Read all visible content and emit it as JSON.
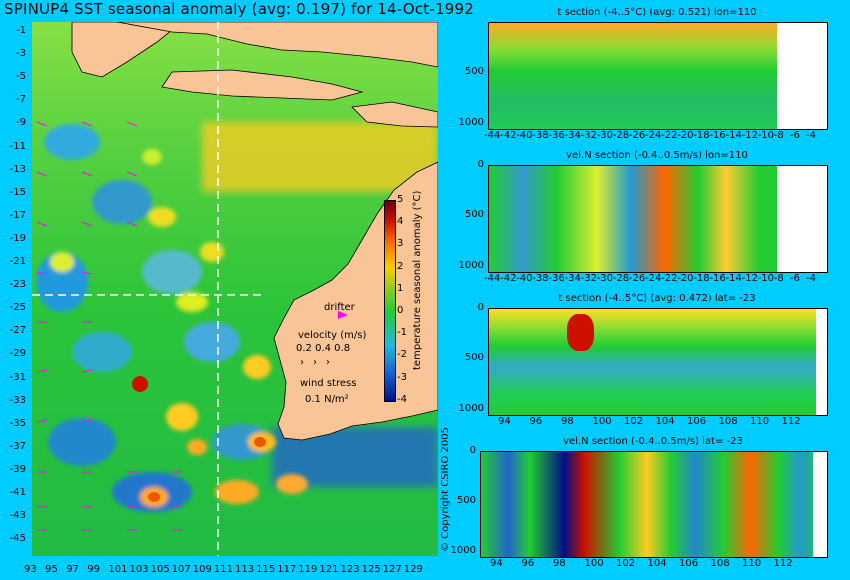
{
  "title": "SPINUP4 SST seasonal anomaly (avg: 0.197) for 14-Oct-1992",
  "map": {
    "lat_ticks": [
      "-1",
      "-3",
      "-5",
      "-7",
      "-9",
      "-11",
      "-13",
      "-15",
      "-17",
      "-19",
      "-21",
      "-23",
      "-25",
      "-27",
      "-29",
      "-31",
      "-33",
      "-35",
      "-37",
      "-39",
      "-41",
      "-43",
      "-45"
    ],
    "lon_ticks": [
      "93",
      "95",
      "97",
      "99",
      "101",
      "103",
      "105",
      "107",
      "109",
      "111",
      "113",
      "115",
      "117",
      "119",
      "121",
      "123",
      "125",
      "127",
      "129"
    ],
    "colorbar": {
      "label": "temperature seasonal anomaly (°C)",
      "ticks": [
        "5",
        "4",
        "3",
        "2",
        "1",
        "0",
        "-1",
        "-2",
        "-3",
        "-4"
      ],
      "range": [
        -4,
        5
      ]
    },
    "annotations": {
      "drifter": "drifter",
      "velocity_label": "velocity (m/s)",
      "velocity_scale": "0.2 0.4 0.8",
      "wind_label": "wind stress",
      "wind_scale": "0.1 N/m²"
    },
    "section_lines": {
      "lon": 110,
      "lat": -23
    },
    "colors": {
      "land": "#f9c496",
      "ocean_base": "#22cc33",
      "warm": "#ff9900",
      "hot": "#cc1100",
      "cool": "#2299dd",
      "cold": "#1122aa",
      "vectors": "#ff00ff"
    }
  },
  "panels": [
    {
      "title": "t section (-4..5°C) (avg: 0.521) lon=110",
      "y_ticks": [
        "500",
        "1000"
      ],
      "x_ticks": [
        "-44",
        "-42",
        "-40",
        "-38",
        "-36",
        "-34",
        "-32",
        "-30",
        "-28",
        "-26",
        "-24",
        "-22",
        "-20",
        "-18",
        "-16",
        "-14",
        "-12",
        "-10",
        "-8",
        "-6",
        "-4"
      ]
    },
    {
      "title": "vel.N section (-0.4..0.5m/s) lon=110",
      "y_ticks": [
        "0",
        "500",
        "1000"
      ],
      "x_ticks": [
        "-44",
        "-42",
        "-40",
        "-38",
        "-36",
        "-34",
        "-32",
        "-30",
        "-28",
        "-26",
        "-24",
        "-22",
        "-20",
        "-18",
        "-16",
        "-14",
        "-12",
        "-10",
        "-8",
        "-6",
        "-4"
      ]
    },
    {
      "title": "t section (-4..5°C) (avg: 0.472) lat= -23",
      "y_ticks": [
        "0",
        "500",
        "1000"
      ],
      "x_ticks": [
        "94",
        "96",
        "98",
        "100",
        "102",
        "104",
        "106",
        "108",
        "110",
        "112"
      ]
    },
    {
      "title": "vel.N section (-0.4..0.5m/s) lat= -23",
      "y_ticks": [
        "0",
        "500",
        "1000"
      ],
      "x_ticks": [
        "94",
        "96",
        "98",
        "100",
        "102",
        "104",
        "106",
        "108",
        "110",
        "112"
      ]
    }
  ],
  "copyright": "© Copyright CSIRO 2005",
  "chart_data": [
    {
      "type": "heatmap",
      "title": "SPINUP4 SST seasonal anomaly (avg: 0.197) for 14-Oct-1992",
      "xlabel": "",
      "ylabel": "",
      "xlim": [
        93,
        130
      ],
      "ylim": [
        -45,
        0
      ],
      "colorbar_label": "temperature seasonal anomaly (°C)",
      "colorbar_range": [
        -4,
        5
      ]
    },
    {
      "type": "heatmap",
      "title": "t section (-4..5°C) (avg: 0.521) lon=110",
      "xlim": [
        -45,
        -3
      ],
      "ylim": [
        1050,
        0
      ]
    },
    {
      "type": "heatmap",
      "title": "vel.N section (-0.4..0.5m/s) lon=110",
      "xlim": [
        -45,
        -3
      ],
      "ylim": [
        1050,
        0
      ]
    },
    {
      "type": "heatmap",
      "title": "t section (-4..5°C) (avg: 0.472) lat= -23",
      "xlim": [
        93,
        114
      ],
      "ylim": [
        1050,
        0
      ]
    },
    {
      "type": "heatmap",
      "title": "vel.N section (-0.4..0.5m/s) lat= -23",
      "xlim": [
        93,
        114
      ],
      "ylim": [
        1050,
        0
      ]
    }
  ]
}
